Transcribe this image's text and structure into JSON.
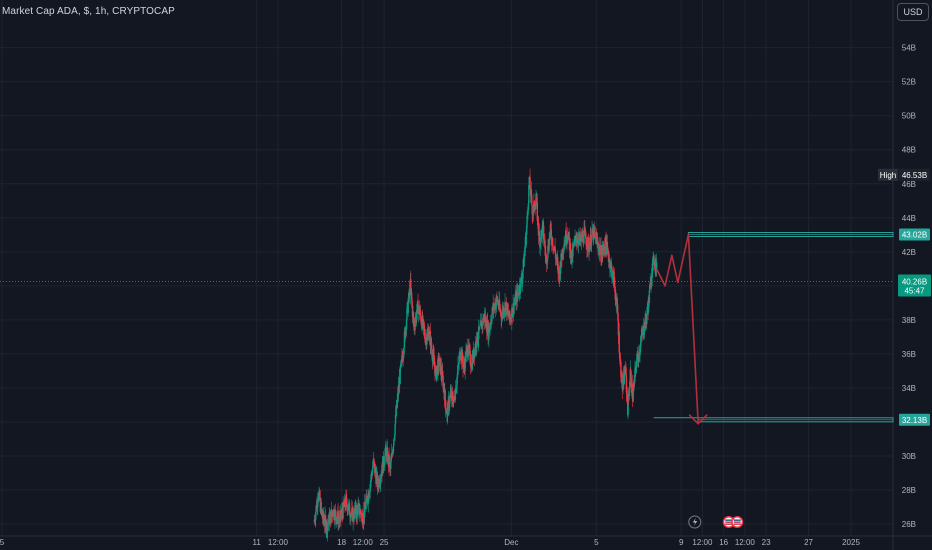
{
  "header": {
    "title": "Market Cap ADA, $, 1h, CRYPTOCAP",
    "currency_button": "USD"
  },
  "colors": {
    "background": "#131722",
    "grid": "#1f2330",
    "up": "#089981",
    "down": "#f23645",
    "teal_level": "#26a69a",
    "projection": "#b2303b",
    "price_line": "#089981",
    "text": "#b2b5be"
  },
  "chart_data": {
    "type": "candlestick",
    "symbol": "Market Cap ADA",
    "interval": "1h",
    "y_axis_labels": [
      {
        "value": 26,
        "label": "26B"
      },
      {
        "value": 28,
        "label": "28B"
      },
      {
        "value": 30,
        "label": "30B"
      },
      {
        "value": 32,
        "label": ""
      },
      {
        "value": 34,
        "label": "34B"
      },
      {
        "value": 36,
        "label": "36B"
      },
      {
        "value": 38,
        "label": "38B"
      },
      {
        "value": 40,
        "label": ""
      },
      {
        "value": 42,
        "label": "42B"
      },
      {
        "value": 44,
        "label": "44B"
      },
      {
        "value": 46,
        "label": "46B"
      },
      {
        "value": 48,
        "label": "48B"
      },
      {
        "value": 50,
        "label": "50B"
      },
      {
        "value": 52,
        "label": "52B"
      },
      {
        "value": 54,
        "label": "54B"
      }
    ],
    "ylim": [
      25.3,
      56.8
    ],
    "x_axis_labels": [
      {
        "day": -0.9,
        "label": "5"
      },
      {
        "day": 5.1,
        "label": "11"
      },
      {
        "day": 5.6,
        "label": "12:00"
      },
      {
        "day": 7.1,
        "label": "18"
      },
      {
        "day": 7.6,
        "label": "12:00"
      },
      {
        "day": 8.1,
        "label": "25"
      },
      {
        "day": 11.1,
        "label": "Dec"
      },
      {
        "day": 13.1,
        "label": "5"
      },
      {
        "day": 15.1,
        "label": "9"
      },
      {
        "day": 15.6,
        "label": "12:00"
      },
      {
        "day": 16.1,
        "label": "16"
      },
      {
        "day": 16.6,
        "label": "12:00"
      },
      {
        "day": 17.1,
        "label": "23"
      },
      {
        "day": 18.1,
        "label": "27"
      },
      {
        "day": 19.1,
        "label": "2025"
      }
    ],
    "price_path": [
      [
        6.45,
        26.1
      ],
      [
        6.55,
        27.8
      ],
      [
        6.65,
        26.4
      ],
      [
        6.75,
        25.9
      ],
      [
        6.9,
        26.8
      ],
      [
        7.05,
        26.2
      ],
      [
        7.2,
        27.3
      ],
      [
        7.35,
        26.5
      ],
      [
        7.5,
        26.9
      ],
      [
        7.6,
        26.4
      ],
      [
        7.72,
        27.6
      ],
      [
        7.85,
        29.6
      ],
      [
        7.95,
        28.3
      ],
      [
        8.05,
        29.2
      ],
      [
        8.15,
        30.3
      ],
      [
        8.25,
        29.2
      ],
      [
        8.35,
        31.6
      ],
      [
        8.45,
        34.2
      ],
      [
        8.55,
        36.2
      ],
      [
        8.65,
        38.6
      ],
      [
        8.72,
        40.0
      ],
      [
        8.8,
        37.6
      ],
      [
        8.9,
        38.8
      ],
      [
        9.0,
        37.8
      ],
      [
        9.08,
        36.9
      ],
      [
        9.16,
        37.3
      ],
      [
        9.24,
        36.0
      ],
      [
        9.32,
        34.8
      ],
      [
        9.4,
        35.6
      ],
      [
        9.5,
        34.2
      ],
      [
        9.58,
        32.4
      ],
      [
        9.66,
        33.6
      ],
      [
        9.74,
        33.2
      ],
      [
        9.82,
        34.6
      ],
      [
        9.9,
        36.3
      ],
      [
        9.98,
        35.1
      ],
      [
        10.06,
        36.4
      ],
      [
        10.16,
        35.4
      ],
      [
        10.26,
        36.6
      ],
      [
        10.36,
        37.4
      ],
      [
        10.46,
        38.2
      ],
      [
        10.56,
        37.3
      ],
      [
        10.66,
        38.6
      ],
      [
        10.76,
        39.2
      ],
      [
        10.86,
        38.3
      ],
      [
        10.96,
        38.9
      ],
      [
        11.06,
        38.0
      ],
      [
        11.16,
        38.9
      ],
      [
        11.26,
        39.6
      ],
      [
        11.36,
        40.6
      ],
      [
        11.46,
        43.4
      ],
      [
        11.52,
        46.2
      ],
      [
        11.6,
        44.3
      ],
      [
        11.68,
        45.1
      ],
      [
        11.76,
        42.6
      ],
      [
        11.84,
        43.4
      ],
      [
        11.92,
        41.5
      ],
      [
        12.02,
        43.2
      ],
      [
        12.12,
        42.1
      ],
      [
        12.22,
        40.6
      ],
      [
        12.32,
        42.4
      ],
      [
        12.42,
        43.2
      ],
      [
        12.52,
        41.6
      ],
      [
        12.62,
        42.9
      ],
      [
        12.72,
        42.6
      ],
      [
        12.82,
        43.0
      ],
      [
        12.92,
        42.3
      ],
      [
        13.02,
        43.1
      ],
      [
        13.12,
        42.6
      ],
      [
        13.22,
        41.8
      ],
      [
        13.32,
        42.5
      ],
      [
        13.42,
        41.4
      ],
      [
        13.52,
        40.2
      ],
      [
        13.6,
        38.4
      ],
      [
        13.66,
        35.6
      ],
      [
        13.72,
        33.9
      ],
      [
        13.78,
        35.2
      ],
      [
        13.84,
        32.8
      ],
      [
        13.9,
        34.9
      ],
      [
        13.96,
        33.4
      ],
      [
        14.04,
        35.5
      ],
      [
        14.12,
        36.2
      ],
      [
        14.2,
        37.4
      ],
      [
        14.28,
        38.1
      ],
      [
        14.34,
        39.2
      ],
      [
        14.4,
        40.8
      ],
      [
        14.46,
        41.6
      ],
      [
        14.52,
        41.0
      ]
    ],
    "current_price": {
      "value": 40.26,
      "label": "40.26B",
      "countdown": "45:47"
    },
    "high": {
      "label": "High",
      "value_label": "46.53B",
      "value": 46.53
    },
    "levels": [
      {
        "value": 43.02,
        "label": "43.02B"
      },
      {
        "value": 32.13,
        "label": "32.13B"
      }
    ],
    "projection": [
      [
        14.52,
        41.0
      ],
      [
        14.72,
        40.0
      ],
      [
        14.88,
        41.8
      ],
      [
        15.02,
        40.2
      ],
      [
        15.27,
        43.02
      ],
      [
        15.5,
        31.9
      ]
    ],
    "events": [
      {
        "day": 15.42,
        "type": "dividend-icon"
      },
      {
        "day": 16.22,
        "type": "flag-icon"
      },
      {
        "day": 16.42,
        "type": "flag-icon"
      }
    ]
  }
}
